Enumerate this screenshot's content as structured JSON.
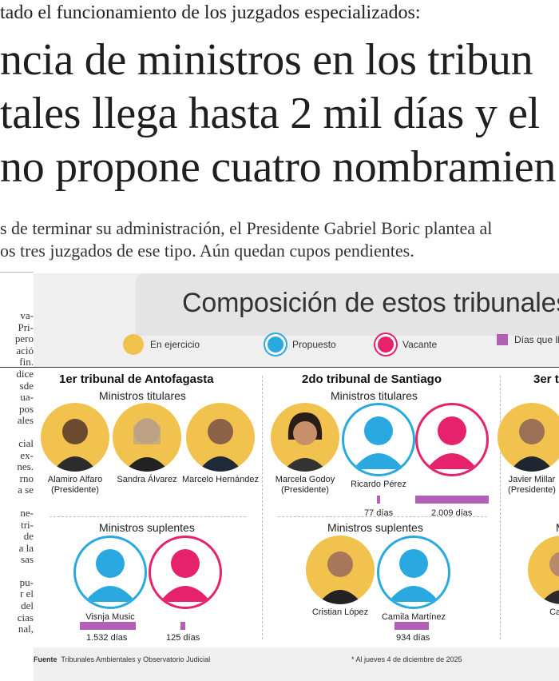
{
  "article": {
    "kicker": "tado el funcionamiento de los juzgados especializados:",
    "headline": [
      "ncia de ministros en los tribun",
      "tales llega hasta 2 mil días y el",
      "no propone cuatro nombramien"
    ],
    "deck": [
      "s de terminar su administración, el Presidente Gabriel Boric plantea al",
      "os tres juzgados de ese tipo. Aún quedan cupos pendientes."
    ],
    "body_fragments": [
      "va-",
      "Pri-",
      "pero",
      "ació",
      "fin.",
      "dice",
      "sde",
      "ua-",
      "pos",
      "ales",
      "",
      "cial",
      "ex-",
      "nes.",
      "rno",
      "a se",
      "",
      "ne-",
      "tri-",
      "de",
      "a la",
      "sas",
      "",
      "pu-",
      "r el",
      "del",
      "cias",
      "nal,"
    ]
  },
  "infographic": {
    "title": "Composición de estos tribunales",
    "colors": {
      "en_ejercicio": "#f1c24e",
      "propuesto": "#29a9e0",
      "vacante": "#e5226b",
      "dias_bar": "#b161b4"
    },
    "legend": [
      {
        "label": "En ejercicio",
        "type": "dot",
        "color": "#f1c24e",
        "icon": "portrait-icon"
      },
      {
        "label": "Propuesto",
        "type": "dot",
        "color": "#29a9e0",
        "icon": "silhouette-icon"
      },
      {
        "label": "Vacante",
        "type": "dot",
        "color": "#e5226b",
        "icon": "silhouette-icon"
      },
      {
        "label": "Días que lle",
        "type": "bar",
        "color": "#b161b4"
      }
    ],
    "tribunals": [
      {
        "name": "1er tribunal de Antofagasta",
        "titulares_label": "Ministros titulares",
        "titulares": [
          {
            "name": "Alamiro Alfaro",
            "role": "(Presidente)",
            "status": "en_ejercicio"
          },
          {
            "name": "Sandra Álvarez",
            "role": "",
            "status": "en_ejercicio"
          },
          {
            "name": "Marcelo Hernández",
            "role": "",
            "status": "en_ejercicio"
          }
        ],
        "suplentes_label": "Ministros suplentes",
        "suplentes": [
          {
            "name": "Visnja Music",
            "status": "propuesto",
            "days": "1.532 días",
            "days_value": 1532
          },
          {
            "name": "",
            "status": "vacante",
            "days": "125 días",
            "days_value": 125
          }
        ]
      },
      {
        "name": "2do tribunal de Santiago",
        "titulares_label": "Ministros titulares",
        "titulares": [
          {
            "name": "Marcela Godoy",
            "role": "(Presidente)",
            "status": "en_ejercicio"
          },
          {
            "name": "Ricardo Pérez",
            "role": "",
            "status": "propuesto",
            "days": "77 días",
            "days_value": 77
          },
          {
            "name": "",
            "role": "",
            "status": "vacante",
            "days": "2.009 días",
            "days_value": 2009
          }
        ],
        "suplentes_label": "Ministros suplentes",
        "suplentes": [
          {
            "name": "Cristian López",
            "status": "en_ejercicio"
          },
          {
            "name": "Camila Martínez",
            "status": "propuesto",
            "days": "934 días",
            "days_value": 934
          }
        ]
      },
      {
        "name": "3er t",
        "titulares": [
          {
            "name": "Javier Millar",
            "role": "(Presidente)",
            "status": "en_ejercicio"
          }
        ],
        "suplentes_label": "M",
        "suplentes": [
          {
            "name": "Carlos",
            "status": "en_ejercicio"
          }
        ]
      }
    ],
    "footer": {
      "source_label": "Fuente",
      "source_text": "Tribunales Ambientales y Observatorio Judicial",
      "note": "* Al jueves 4 de diciembre de 2025"
    }
  }
}
